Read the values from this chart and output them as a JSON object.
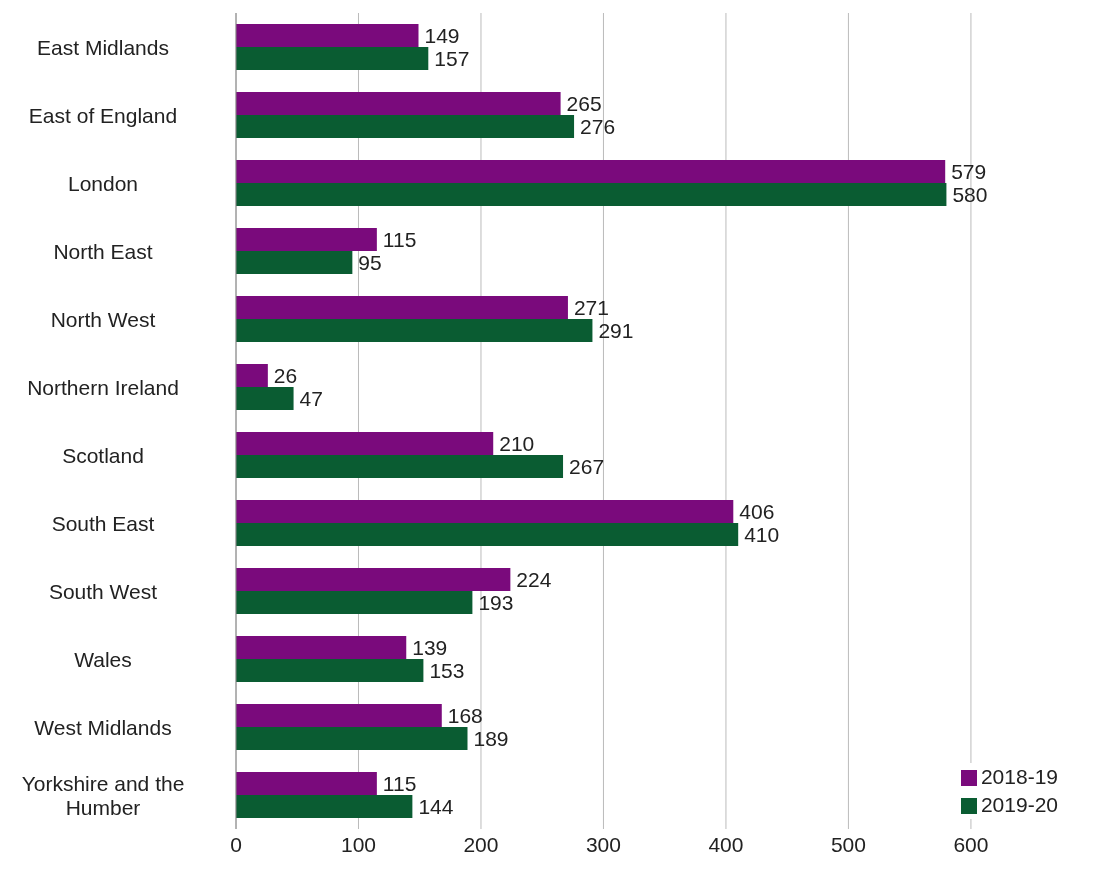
{
  "chart_data": {
    "type": "bar",
    "orientation": "horizontal",
    "categories": [
      "East Midlands",
      "East of England",
      "London",
      "North East",
      "North West",
      "Northern Ireland",
      "Scotland",
      "South East",
      "South West",
      "Wales",
      "West Midlands",
      "Yorkshire and the Humber"
    ],
    "series": [
      {
        "name": "2018-19",
        "color": "#7a0a7c",
        "values": [
          149,
          265,
          579,
          115,
          271,
          26,
          210,
          406,
          224,
          139,
          168,
          115
        ]
      },
      {
        "name": "2019-20",
        "color": "#0a5c32",
        "values": [
          157,
          276,
          580,
          95,
          291,
          47,
          267,
          410,
          193,
          153,
          189,
          144
        ]
      }
    ],
    "xlim": [
      0,
      600
    ],
    "xticks": [
      0,
      100,
      200,
      300,
      400,
      500,
      600
    ],
    "grid": "x",
    "legend": "bottom right",
    "data_labels": true
  }
}
